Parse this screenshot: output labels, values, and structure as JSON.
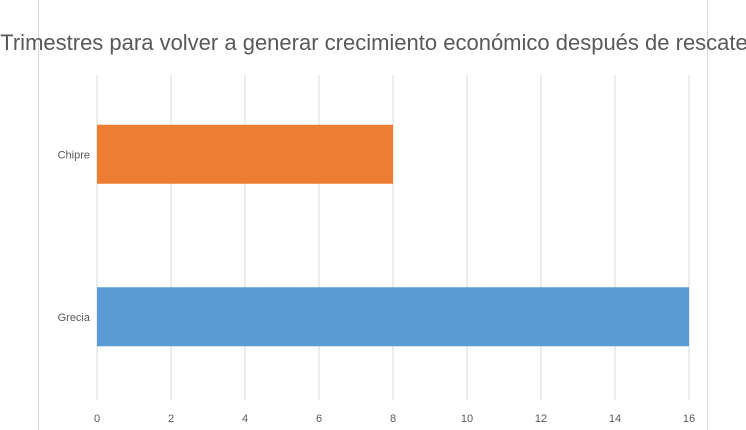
{
  "chart_data": {
    "type": "bar",
    "orientation": "horizontal",
    "title": "Trimestres para volver a generar crecimiento económico después de rescate",
    "categories": [
      "Chipre",
      "Grecia"
    ],
    "values": [
      8,
      16
    ],
    "colors": [
      "#ed7d31",
      "#5b9bd5"
    ],
    "xlim": [
      0,
      16
    ],
    "xticks": [
      "0",
      "2",
      "4",
      "6",
      "8",
      "10",
      "12",
      "14",
      "16"
    ],
    "grid": true,
    "legend": "none"
  }
}
